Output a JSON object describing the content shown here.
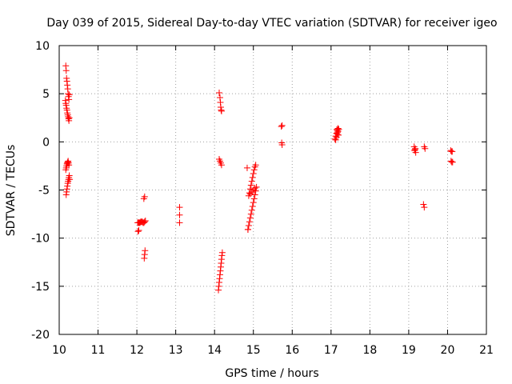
{
  "chart_data": {
    "type": "scatter",
    "title": "Day 039 of 2015, Sidereal Day-to-day VTEC variation (SDTVAR) for receiver igeo",
    "xlabel": "GPS time / hours",
    "ylabel": "SDTVAR / TECUs",
    "xlim": [
      10,
      21
    ],
    "ylim": [
      -20,
      10
    ],
    "xticks": [
      10,
      11,
      12,
      13,
      14,
      15,
      16,
      17,
      18,
      19,
      20,
      21
    ],
    "yticks": [
      -20,
      -15,
      -10,
      -5,
      0,
      5,
      10
    ],
    "grid": true,
    "marker": "+",
    "color": "#ff0000",
    "series": [
      {
        "name": "SDTVAR",
        "x": [
          10.17,
          10.18,
          10.19,
          10.2,
          10.21,
          10.22,
          10.23,
          10.24,
          10.25,
          10.26,
          10.16,
          10.17,
          10.18,
          10.19,
          10.2,
          10.21,
          10.22,
          10.23,
          10.24,
          10.25,
          10.26,
          10.17,
          10.18,
          10.19,
          10.2,
          10.21,
          10.22,
          10.23,
          10.24,
          10.25,
          10.18,
          10.19,
          10.2,
          10.21,
          10.22,
          10.23,
          10.24,
          10.25,
          10.26,
          10.27,
          12.02,
          12.04,
          12.06,
          12.08,
          12.1,
          12.12,
          12.14,
          12.16,
          12.18,
          12.2,
          12.22,
          12.03,
          12.05,
          12.18,
          12.2,
          12.19,
          12.2,
          12.21,
          13.1,
          13.1,
          13.1,
          14.12,
          14.14,
          14.15,
          14.16,
          14.17,
          14.18,
          14.12,
          14.14,
          14.16,
          14.18,
          14.1,
          14.11,
          14.12,
          14.13,
          14.14,
          14.15,
          14.16,
          14.17,
          14.18,
          14.19,
          14.2,
          14.84,
          14.86,
          14.88,
          14.9,
          14.92,
          14.94,
          14.96,
          14.98,
          15.0,
          15.02,
          15.04,
          15.06,
          15.08,
          14.86,
          14.9,
          14.92,
          14.94,
          14.96,
          14.98,
          15.0,
          15.02,
          15.04,
          15.06,
          14.88,
          14.92,
          14.96,
          15.0,
          15.04,
          15.72,
          15.74,
          15.73,
          15.74,
          17.1,
          17.12,
          17.14,
          17.16,
          17.18,
          17.2,
          17.12,
          17.14,
          17.16,
          17.18,
          17.15,
          17.17,
          17.19,
          19.14,
          19.16,
          19.18,
          19.15,
          19.17,
          19.4,
          19.42,
          19.38,
          19.4,
          20.08,
          20.1,
          20.12,
          20.09,
          20.11,
          20.13
        ],
        "y": [
          7.9,
          7.4,
          6.6,
          6.3,
          5.9,
          5.5,
          5.0,
          4.7,
          4.4,
          4.9,
          4.3,
          4.0,
          3.8,
          3.5,
          3.3,
          3.0,
          2.8,
          2.6,
          2.4,
          2.2,
          2.5,
          -2.9,
          -2.7,
          -2.5,
          -2.3,
          -2.2,
          -2.1,
          -2.0,
          -2.2,
          -2.4,
          -5.5,
          -5.2,
          -4.9,
          -4.6,
          -4.3,
          -4.1,
          -3.9,
          -3.7,
          -3.5,
          -3.9,
          -8.4,
          -8.4,
          -8.4,
          -8.4,
          -8.3,
          -8.3,
          -8.3,
          -8.4,
          -8.4,
          -8.3,
          -8.2,
          -9.3,
          -9.2,
          -5.9,
          -5.7,
          -12.1,
          -11.7,
          -11.3,
          -6.8,
          -7.6,
          -8.4,
          5.1,
          4.6,
          4.1,
          3.6,
          3.3,
          3.2,
          -1.8,
          -2.0,
          -2.2,
          -2.4,
          -15.4,
          -15.0,
          -14.6,
          -14.2,
          -13.8,
          -13.4,
          -13.0,
          -12.6,
          -12.2,
          -11.8,
          -11.5,
          -2.7,
          -9.1,
          -8.7,
          -8.3,
          -7.9,
          -7.5,
          -7.1,
          -6.7,
          -6.3,
          -5.9,
          -5.5,
          -5.1,
          -4.7,
          -9.1,
          -5.3,
          -4.9,
          -4.5,
          -4.1,
          -3.7,
          -3.3,
          -2.9,
          -2.6,
          -2.4,
          -5.6,
          -5.4,
          -5.2,
          -5.0,
          -4.8,
          1.6,
          1.7,
          -0.1,
          -0.3,
          0.3,
          0.6,
          0.9,
          1.2,
          1.4,
          1.3,
          0.2,
          0.5,
          0.8,
          1.1,
          1.3,
          1.0,
          0.7,
          -0.5,
          -0.8,
          -1.1,
          -0.9,
          -0.7,
          -0.5,
          -0.7,
          -6.5,
          -6.8,
          -0.9,
          -1.0,
          -1.0,
          -2.0,
          -2.1,
          -2.1
        ]
      }
    ]
  }
}
